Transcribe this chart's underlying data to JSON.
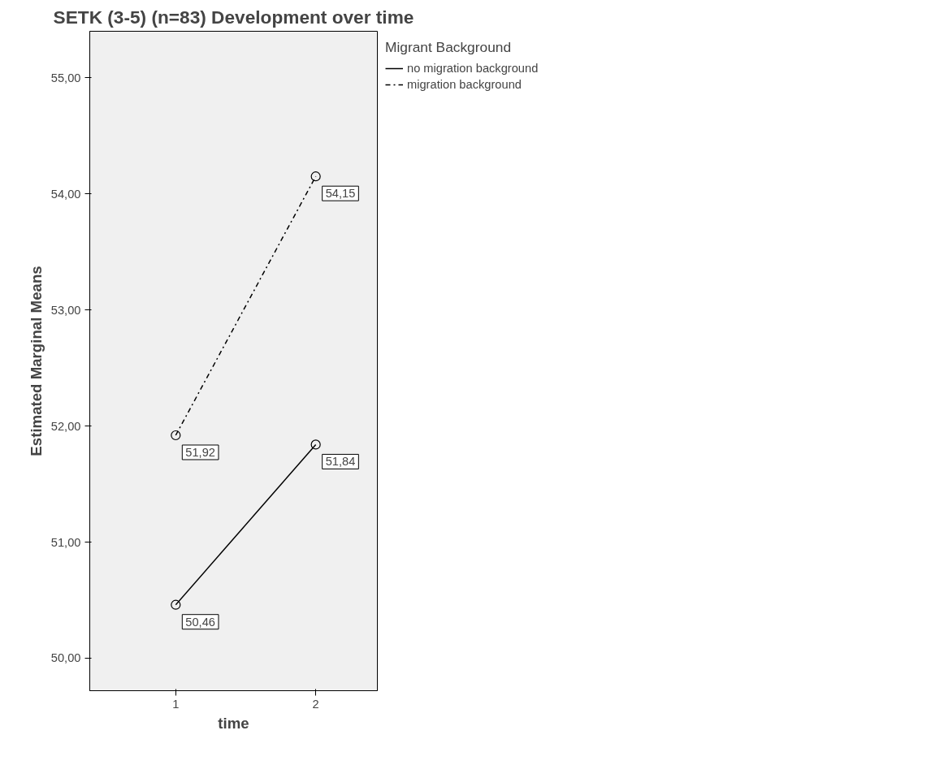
{
  "chart_data": {
    "type": "line",
    "title": "SETK (3-5) (n=83) Development over time",
    "xlabel": "time",
    "ylabel": "Estimated Marginal Means",
    "legend_title": "Migrant Background",
    "categories": [
      "1",
      "2"
    ],
    "series": [
      {
        "name": "no migration background",
        "color": "#000000",
        "line_style": "solid",
        "values": [
          50.46,
          51.84
        ],
        "value_labels": [
          "50,46",
          "51,84"
        ]
      },
      {
        "name": "migration background",
        "color": "#000000",
        "line_style": "dashdot",
        "values": [
          51.92,
          54.15
        ],
        "value_labels": [
          "51,92",
          "54,15"
        ]
      }
    ],
    "ylim": [
      49.72,
      55.4
    ],
    "yticks": [
      {
        "value": 50,
        "label": "50,00"
      },
      {
        "value": 51,
        "label": "51,00"
      },
      {
        "value": 52,
        "label": "52,00"
      },
      {
        "value": 53,
        "label": "53,00"
      },
      {
        "value": 54,
        "label": "54,00"
      },
      {
        "value": 55,
        "label": "55,00"
      }
    ],
    "marker": "circle",
    "grid": false,
    "legend": "top right"
  }
}
